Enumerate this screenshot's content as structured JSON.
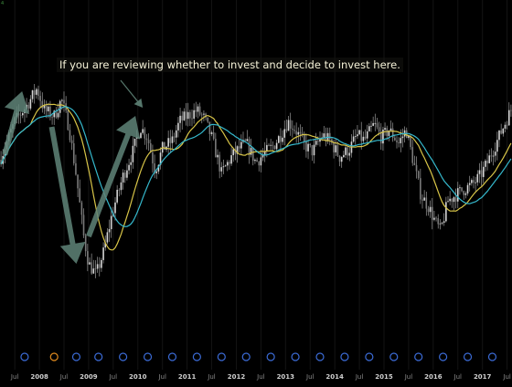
{
  "chart_data": {
    "type": "line",
    "subtype": "candlestick-with-moving-averages",
    "title": "",
    "xlabel": "",
    "ylabel": "",
    "corner_label": "4",
    "annotation": "If you are reviewing whether to invest and decide to invest here.",
    "x_ticks": [
      {
        "label": "Jul",
        "t": 2007.5,
        "bold": false
      },
      {
        "label": "2008",
        "t": 2008.0,
        "bold": true
      },
      {
        "label": "Jul",
        "t": 2008.5,
        "bold": false
      },
      {
        "label": "2009",
        "t": 2009.0,
        "bold": true
      },
      {
        "label": "Jul",
        "t": 2009.5,
        "bold": false
      },
      {
        "label": "2010",
        "t": 2010.0,
        "bold": true
      },
      {
        "label": "Jul",
        "t": 2010.5,
        "bold": false
      },
      {
        "label": "2011",
        "t": 2011.0,
        "bold": true
      },
      {
        "label": "Jul",
        "t": 2011.5,
        "bold": false
      },
      {
        "label": "2012",
        "t": 2012.0,
        "bold": true
      },
      {
        "label": "Jul",
        "t": 2012.5,
        "bold": false
      },
      {
        "label": "2013",
        "t": 2013.0,
        "bold": true
      },
      {
        "label": "Jul",
        "t": 2013.5,
        "bold": false
      },
      {
        "label": "2014",
        "t": 2014.0,
        "bold": true
      },
      {
        "label": "Jul",
        "t": 2014.5,
        "bold": false
      },
      {
        "label": "2015",
        "t": 2015.0,
        "bold": true
      },
      {
        "label": "Jul",
        "t": 2015.5,
        "bold": false
      },
      {
        "label": "2016",
        "t": 2016.0,
        "bold": true
      },
      {
        "label": "Jul",
        "t": 2016.5,
        "bold": false
      },
      {
        "label": "2017",
        "t": 2017.0,
        "bold": true
      },
      {
        "label": "Jul",
        "t": 2017.5,
        "bold": false
      }
    ],
    "xlim": [
      2007.2,
      2017.6
    ],
    "ylim": [
      0,
      100
    ],
    "price_anchors": [
      [
        2007.2,
        50
      ],
      [
        2007.5,
        64
      ],
      [
        2007.75,
        70
      ],
      [
        2007.95,
        76
      ],
      [
        2008.1,
        68
      ],
      [
        2008.3,
        66
      ],
      [
        2008.45,
        72
      ],
      [
        2008.6,
        62
      ],
      [
        2008.75,
        44
      ],
      [
        2008.9,
        22
      ],
      [
        2009.0,
        12
      ],
      [
        2009.15,
        8
      ],
      [
        2009.3,
        16
      ],
      [
        2009.5,
        32
      ],
      [
        2009.7,
        44
      ],
      [
        2009.9,
        53
      ],
      [
        2010.05,
        62
      ],
      [
        2010.2,
        58
      ],
      [
        2010.35,
        46
      ],
      [
        2010.5,
        54
      ],
      [
        2010.7,
        57
      ],
      [
        2010.85,
        64
      ],
      [
        2011.0,
        66
      ],
      [
        2011.2,
        68
      ],
      [
        2011.35,
        65
      ],
      [
        2011.5,
        58
      ],
      [
        2011.7,
        45
      ],
      [
        2011.9,
        51
      ],
      [
        2012.05,
        54
      ],
      [
        2012.2,
        56
      ],
      [
        2012.4,
        49
      ],
      [
        2012.55,
        52
      ],
      [
        2012.75,
        55
      ],
      [
        2012.9,
        59
      ],
      [
        2013.05,
        64
      ],
      [
        2013.2,
        61
      ],
      [
        2013.4,
        55
      ],
      [
        2013.55,
        53
      ],
      [
        2013.75,
        59
      ],
      [
        2013.9,
        57
      ],
      [
        2014.1,
        51
      ],
      [
        2014.3,
        54
      ],
      [
        2014.45,
        59
      ],
      [
        2014.6,
        57
      ],
      [
        2014.8,
        63
      ],
      [
        2014.95,
        58
      ],
      [
        2015.1,
        61
      ],
      [
        2015.3,
        56
      ],
      [
        2015.45,
        61
      ],
      [
        2015.6,
        49
      ],
      [
        2015.75,
        37
      ],
      [
        2015.9,
        33
      ],
      [
        2016.05,
        27
      ],
      [
        2016.15,
        24
      ],
      [
        2016.3,
        35
      ],
      [
        2016.45,
        37
      ],
      [
        2016.6,
        39
      ],
      [
        2016.8,
        41
      ],
      [
        2016.95,
        44
      ],
      [
        2017.1,
        49
      ],
      [
        2017.3,
        57
      ],
      [
        2017.45,
        63
      ],
      [
        2017.6,
        69
      ]
    ],
    "series": [
      {
        "key": "price",
        "color": "#bdbdbd"
      },
      {
        "key": "ma_fast",
        "color": "#d8c548"
      },
      {
        "key": "ma_slow",
        "color": "#35b8cc"
      }
    ],
    "arrow_color": "#5f8478",
    "arrows": [
      {
        "shape": "up",
        "from": [
          2007.3,
          52
        ],
        "to": [
          2007.65,
          75
        ]
      },
      {
        "shape": "down",
        "from": [
          2008.25,
          62
        ],
        "to": [
          2008.75,
          12
        ]
      },
      {
        "shape": "up",
        "from": [
          2009.0,
          22
        ],
        "to": [
          2009.95,
          66
        ]
      },
      {
        "shape": "pointer",
        "from": [
          2009.65,
          79
        ],
        "to": [
          2010.1,
          69
        ]
      }
    ],
    "event_markers": {
      "color": "#3b6bd6",
      "highlight_color": "#e08a1e",
      "items": [
        {
          "t": 2007.7,
          "highlight": false
        },
        {
          "t": 2008.3,
          "highlight": true
        },
        {
          "t": 2008.75,
          "highlight": false
        },
        {
          "t": 2009.2,
          "highlight": false
        },
        {
          "t": 2009.7,
          "highlight": false
        },
        {
          "t": 2010.2,
          "highlight": false
        },
        {
          "t": 2010.7,
          "highlight": false
        },
        {
          "t": 2011.2,
          "highlight": false
        },
        {
          "t": 2011.7,
          "highlight": false
        },
        {
          "t": 2012.2,
          "highlight": false
        },
        {
          "t": 2012.7,
          "highlight": false
        },
        {
          "t": 2013.2,
          "highlight": false
        },
        {
          "t": 2013.7,
          "highlight": false
        },
        {
          "t": 2014.2,
          "highlight": false
        },
        {
          "t": 2014.7,
          "highlight": false
        },
        {
          "t": 2015.2,
          "highlight": false
        },
        {
          "t": 2015.7,
          "highlight": false
        },
        {
          "t": 2016.2,
          "highlight": false
        },
        {
          "t": 2016.7,
          "highlight": false
        },
        {
          "t": 2017.2,
          "highlight": false
        }
      ]
    }
  }
}
